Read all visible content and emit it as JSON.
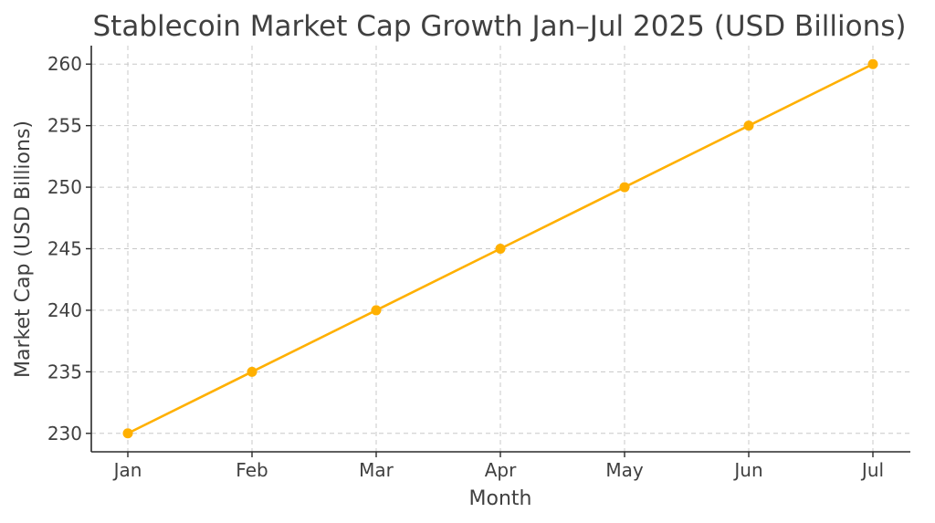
{
  "chart_data": {
    "type": "line",
    "title": "Stablecoin Market Cap Growth Jan–Jul 2025 (USD Billions)",
    "xlabel": "Month",
    "ylabel": "Market Cap (USD Billions)",
    "categories": [
      "Jan",
      "Feb",
      "Mar",
      "Apr",
      "May",
      "Jun",
      "Jul"
    ],
    "series": [
      {
        "values": [
          230,
          235,
          240,
          245,
          250,
          255,
          260
        ]
      }
    ],
    "y_ticks": [
      230,
      235,
      240,
      245,
      250,
      255,
      260
    ],
    "ylim": [
      228.5,
      261.5
    ],
    "grid": true,
    "line_color": "#FFB000",
    "marker": "circle"
  }
}
